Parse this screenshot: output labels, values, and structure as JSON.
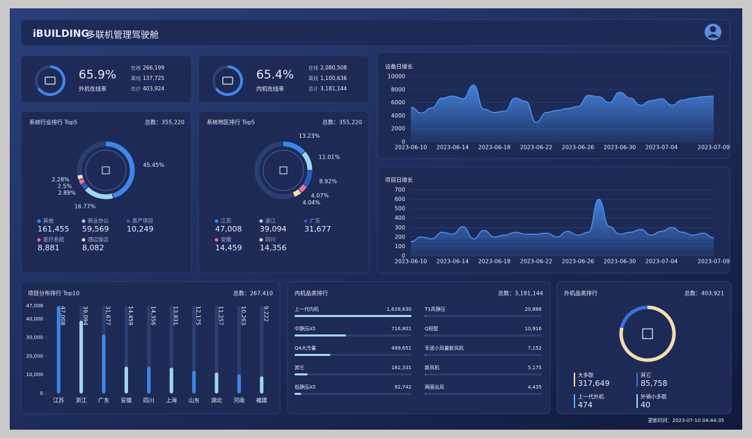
{
  "header": {
    "logo": "iBUILDING",
    "title": "多联机管理驾驶舱"
  },
  "kpis": [
    {
      "value": 65.9,
      "value_label": "65.9%",
      "label": "外机在线率",
      "rows": [
        {
          "label": "在线",
          "value": "266,199"
        },
        {
          "label": "离线",
          "value": "137,725"
        },
        {
          "label": "总计",
          "value": "403,924"
        }
      ]
    },
    {
      "value": 65.4,
      "value_label": "65.4%",
      "label": "内机在线率",
      "rows": [
        {
          "label": "在线",
          "value": "2,080,508"
        },
        {
          "label": "离线",
          "value": "1,100,636"
        },
        {
          "label": "总计",
          "value": "3,181,144"
        }
      ]
    }
  ],
  "donuts": [
    {
      "type": "pie",
      "title": "系统行业排行 Top5",
      "total": "总数：355,220",
      "categories": [
        "其他",
        "商业办公",
        "房产项目",
        "医疗系统",
        "酒店饭店"
      ],
      "values": [
        161455,
        59569,
        10249,
        8881,
        8082
      ],
      "value_labels": [
        "161,455",
        "59,569",
        "10,249",
        "8,881",
        "8,082"
      ],
      "percents": [
        45.45,
        16.77,
        2.89,
        2.5,
        2.28
      ],
      "percent_labels": [
        "45.45%",
        "16.77%",
        "2.89%",
        "2.5%",
        "2.28%"
      ],
      "colors": [
        "#3f86e8",
        "#9fd6f2",
        "#2a5cc0",
        "#e8709e",
        "#f1dfae"
      ]
    },
    {
      "type": "pie",
      "title": "系统地区排行 Top5",
      "total": "总数：355,220",
      "categories": [
        "江苏",
        "浙江",
        "广东",
        "安徽",
        "四川"
      ],
      "values": [
        47008,
        39094,
        31677,
        14459,
        14356
      ],
      "value_labels": [
        "47,008",
        "39,094",
        "31,677",
        "14,459",
        "14,356"
      ],
      "percents": [
        13.23,
        11.01,
        8.92,
        4.07,
        4.04
      ],
      "percent_labels": [
        "13.23%",
        "11.01%",
        "8.92%",
        "4.07%",
        "4.04%"
      ],
      "colors": [
        "#3f86e8",
        "#9fd6f2",
        "#2a5cc0",
        "#e8709e",
        "#f1dfae"
      ]
    }
  ],
  "lines": [
    {
      "type": "line",
      "title": "设备日增长",
      "color": "#4a8ff0",
      "categories": [
        "2023-06-10",
        null,
        null,
        null,
        "2023-06-14",
        null,
        null,
        null,
        "2023-06-18",
        null,
        null,
        null,
        "2023-06-22",
        null,
        null,
        null,
        "2023-06-26",
        null,
        null,
        null,
        "2023-06-30",
        null,
        null,
        null,
        "2023-07-04",
        null,
        null,
        null,
        null,
        "2023-07-09"
      ],
      "values": [
        5300,
        4400,
        5200,
        6700,
        7000,
        6600,
        8700,
        5000,
        4500,
        4700,
        6700,
        6200,
        3000,
        4500,
        4800,
        5100,
        5400,
        7100,
        6900,
        6000,
        7600,
        6700,
        5600,
        6300,
        6600,
        5600,
        6400,
        6700,
        6900,
        7000
      ],
      "ylim": [
        0,
        10000
      ],
      "yticks": [
        0,
        2000,
        4000,
        6000,
        8000,
        10000
      ]
    },
    {
      "type": "line",
      "title": "项目日增长",
      "color": "#4a8ff0",
      "categories": [
        "2023-06-10",
        null,
        null,
        null,
        "2023-06-14",
        null,
        null,
        null,
        "2023-06-18",
        null,
        null,
        null,
        "2023-06-22",
        null,
        null,
        null,
        "2023-06-26",
        null,
        null,
        null,
        "2023-06-30",
        null,
        null,
        null,
        "2023-07-04",
        null,
        null,
        null,
        null,
        "2023-07-09"
      ],
      "values": [
        150,
        200,
        180,
        250,
        230,
        310,
        180,
        270,
        200,
        220,
        250,
        230,
        230,
        240,
        200,
        260,
        220,
        250,
        600,
        310,
        230,
        250,
        280,
        220,
        260,
        300,
        250,
        220,
        240,
        190
      ],
      "ylim": [
        0,
        700
      ],
      "yticks": [
        0,
        100,
        200,
        300,
        400,
        500,
        600,
        700
      ]
    }
  ],
  "bars": {
    "type": "bar",
    "title": "项目分布排行 Top10",
    "total": "总数：267,410",
    "color": "#3f86e8",
    "categories": [
      "江苏",
      "浙江",
      "广东",
      "安徽",
      "四川",
      "上海",
      "山东",
      "湖北",
      "河南",
      "福建"
    ],
    "values": [
      47008,
      39094,
      31677,
      14459,
      14356,
      13831,
      12175,
      11257,
      10263,
      9222
    ],
    "value_labels": [
      "47,008",
      "39,094",
      "31,677",
      "14,459",
      "14,356",
      "13,831",
      "12,175",
      "11,257",
      "10,263",
      "9,222"
    ],
    "ylim": [
      0,
      47008
    ],
    "yticks": [
      0,
      {
        "value": 10000,
        "label": "10,000"
      },
      {
        "value": 20000,
        "label": "20,000"
      },
      {
        "value": 30000,
        "label": "30,000"
      },
      {
        "value": 40000,
        "label": "40,000"
      },
      {
        "value": 47008,
        "label": "47,008"
      }
    ]
  },
  "ranking": {
    "type": "bar",
    "title": "内机品类排行",
    "total": "总数：3,181,144",
    "left": [
      {
        "name": "上一代内机",
        "value": 1628630,
        "value_label": "1,628,630"
      },
      {
        "name": "中静压A5",
        "value": 716801,
        "value_label": "716,801"
      },
      {
        "name": "Q4大冷量",
        "value": 499651,
        "value_label": "499,651"
      },
      {
        "name": "其它",
        "value": 182331,
        "value_label": "182,331"
      },
      {
        "name": "低静压A5",
        "value": 92742,
        "value_label": "92,742"
      }
    ],
    "right": [
      {
        "name": "T1高静压",
        "value": 20886,
        "value_label": "20,886"
      },
      {
        "name": "Q短壁",
        "value": 10916,
        "value_label": "10,916"
      },
      {
        "name": "军遥小风量新风机",
        "value": 7152,
        "value_label": "7,152"
      },
      {
        "name": "新风机",
        "value": 5175,
        "value_label": "5,175"
      },
      {
        "name": "两面出风",
        "value": 4435,
        "value_label": "4,435"
      }
    ]
  },
  "outer": {
    "type": "pie",
    "title": "外机品类排行",
    "total": "总数：403,921",
    "categories": [
      "大多联",
      "其它",
      "上一代外机",
      "外销小多联"
    ],
    "values": [
      317649,
      85758,
      474,
      40
    ],
    "value_labels": [
      "317,649",
      "85,758",
      "474",
      "40"
    ],
    "colors": [
      "#f1dfae",
      "#3c6fd6",
      "#5fa8f0",
      "#9fd6f2"
    ]
  },
  "footer": "更新时间：2023-07-10 04:44:35"
}
